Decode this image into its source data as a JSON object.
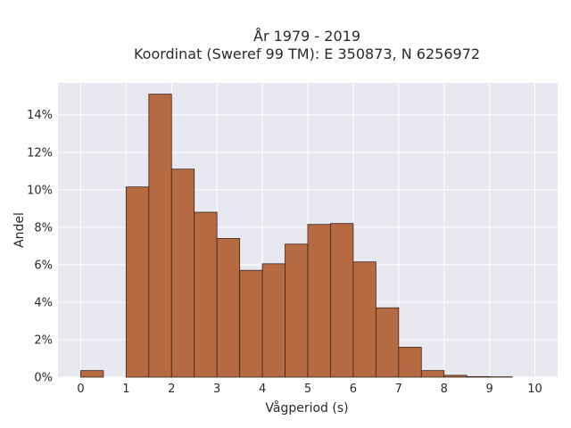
{
  "chart_data": {
    "type": "bar",
    "title_lines": [
      "År 1979 - 2019",
      "Koordinat (Sweref 99 TM): E 350873, N 6256972"
    ],
    "xlabel": "Vågperiod (s)",
    "ylabel": "Andel",
    "xlim": [
      -0.5,
      10.5
    ],
    "ylim": [
      0,
      15.7
    ],
    "x_ticks": [
      "0",
      "1",
      "2",
      "3",
      "4",
      "5",
      "6",
      "7",
      "8",
      "9",
      "10"
    ],
    "y_ticks": [
      "0%",
      "2%",
      "4%",
      "6%",
      "8%",
      "10%",
      "12%",
      "14%"
    ],
    "bin_width": 0.5,
    "bins": [
      {
        "start": 0.0,
        "value": 0.35
      },
      {
        "start": 0.5,
        "value": 0.0
      },
      {
        "start": 1.0,
        "value": 10.15
      },
      {
        "start": 1.5,
        "value": 15.1
      },
      {
        "start": 2.0,
        "value": 11.1
      },
      {
        "start": 2.5,
        "value": 8.8
      },
      {
        "start": 3.0,
        "value": 7.4
      },
      {
        "start": 3.5,
        "value": 5.7
      },
      {
        "start": 4.0,
        "value": 6.05
      },
      {
        "start": 4.5,
        "value": 7.1
      },
      {
        "start": 5.0,
        "value": 8.15
      },
      {
        "start": 5.5,
        "value": 8.2
      },
      {
        "start": 6.0,
        "value": 6.15
      },
      {
        "start": 6.5,
        "value": 3.7
      },
      {
        "start": 7.0,
        "value": 1.6
      },
      {
        "start": 7.5,
        "value": 0.35
      },
      {
        "start": 8.0,
        "value": 0.1
      },
      {
        "start": 8.5,
        "value": 0.03
      },
      {
        "start": 9.0,
        "value": 0.02
      },
      {
        "start": 9.5,
        "value": 0.0
      }
    ],
    "colors": {
      "bar_fill": "#b56a42",
      "bar_stroke": "#3d2418",
      "plot_bg": "#e8e8f1",
      "grid": "#ffffff"
    },
    "grid": true,
    "legend": false
  }
}
